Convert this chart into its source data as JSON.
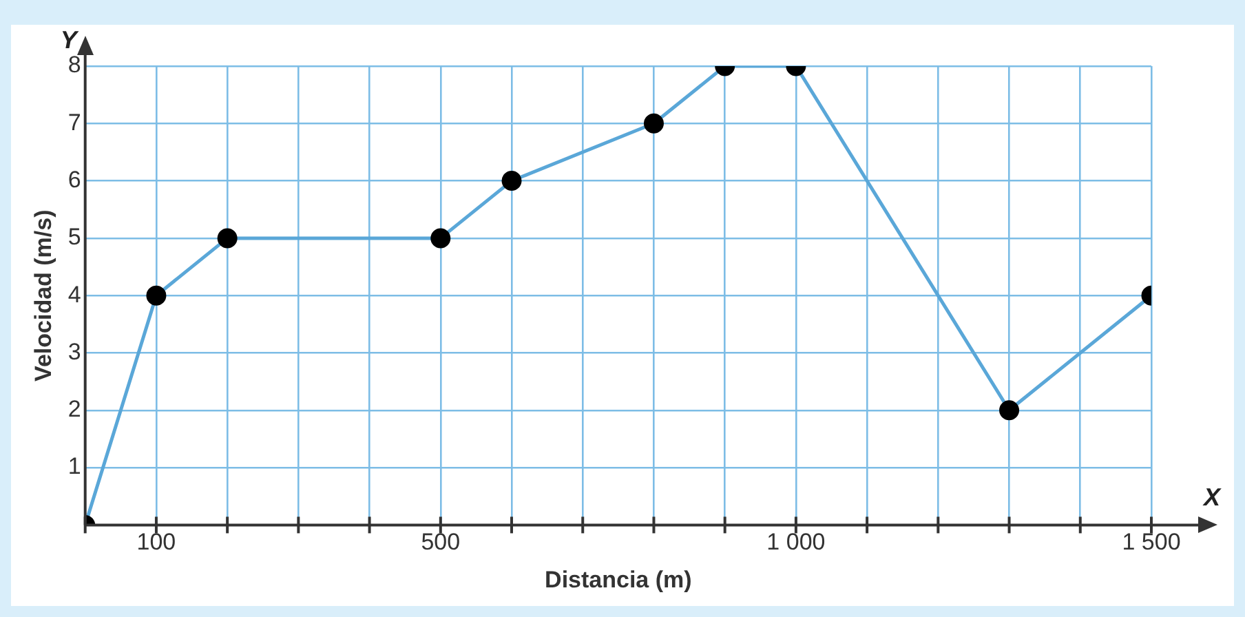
{
  "chart_data": {
    "type": "line",
    "xlabel": "Distancia (m)",
    "ylabel": "Velocidad (m/s)",
    "annotations": [
      "Y",
      "X"
    ],
    "x": [
      0,
      100,
      200,
      500,
      600,
      800,
      900,
      1000,
      1300,
      1500
    ],
    "series": [
      {
        "color": "#5aa7d8",
        "values": [
          0,
          4,
          5,
          5,
          6,
          7,
          8,
          8,
          2,
          4
        ]
      }
    ],
    "xlim": [
      0,
      1500
    ],
    "ylim": [
      0,
      8
    ],
    "xticks": [
      {
        "value": 0,
        "label": null
      },
      100,
      {
        "value": 200,
        "label": null
      },
      {
        "value": 300,
        "label": null
      },
      {
        "value": 400,
        "label": null
      },
      500,
      {
        "value": 600,
        "label": null
      },
      {
        "value": 700,
        "label": null
      },
      {
        "value": 800,
        "label": null
      },
      {
        "value": 900,
        "label": null
      },
      {
        "value": 1000,
        "label": "1 000"
      },
      {
        "value": 1100,
        "label": null
      },
      {
        "value": 1200,
        "label": null
      },
      {
        "value": 1300,
        "label": null
      },
      {
        "value": 1400,
        "label": null
      },
      {
        "value": 1500,
        "label": "1 500"
      }
    ],
    "yticks": [
      {
        "value": 0,
        "label": null
      },
      1,
      2,
      3,
      4,
      5,
      6,
      7,
      8
    ],
    "grid": true,
    "marker": "circle",
    "line_style": "solid",
    "legend": false
  }
}
